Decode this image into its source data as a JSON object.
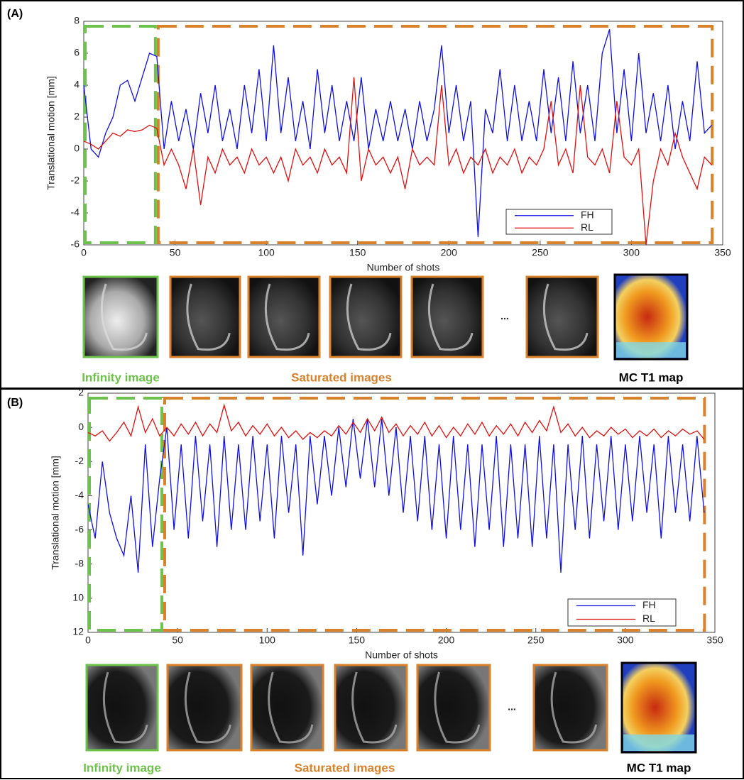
{
  "chart_data": [
    {
      "type": "line",
      "panel_label": "(A)",
      "ylabel": "Translational motion [mm]",
      "xlabel": "Number of shots",
      "xlim": [
        0,
        350
      ],
      "xticks": [
        0,
        50,
        100,
        150,
        200,
        250,
        300,
        350
      ],
      "ylim": [
        -6,
        8
      ],
      "yticks": [
        -6,
        -4,
        -2,
        0,
        2,
        4,
        6,
        8
      ],
      "legend": "lower right",
      "x": [
        0,
        4,
        8,
        12,
        16,
        20,
        24,
        28,
        32,
        36,
        40,
        44,
        48,
        52,
        56,
        60,
        64,
        68,
        72,
        76,
        80,
        84,
        88,
        92,
        96,
        100,
        104,
        108,
        112,
        116,
        120,
        124,
        128,
        132,
        136,
        140,
        144,
        148,
        152,
        156,
        160,
        164,
        168,
        172,
        176,
        180,
        184,
        188,
        192,
        196,
        200,
        204,
        208,
        212,
        216,
        220,
        224,
        228,
        232,
        236,
        240,
        244,
        248,
        252,
        256,
        260,
        264,
        268,
        272,
        276,
        280,
        284,
        288,
        292,
        296,
        300,
        304,
        308,
        312,
        316,
        320,
        324,
        328,
        332,
        336,
        340,
        344
      ],
      "series": [
        {
          "name": "FH",
          "color": "#1010e0",
          "values": [
            4,
            0,
            -0.5,
            1,
            2,
            4,
            4.3,
            3,
            4.5,
            6,
            5.8,
            0,
            3,
            0.5,
            2.5,
            0,
            3.5,
            1,
            4,
            0.5,
            2.5,
            0,
            4,
            1,
            5,
            0.5,
            6.5,
            1,
            4.5,
            0.5,
            3,
            0,
            5,
            1,
            4,
            0.5,
            3,
            0.5,
            4.5,
            0,
            2.5,
            0.5,
            3,
            0.5,
            2.5,
            0,
            3,
            0.5,
            2.5,
            6.5,
            1,
            4,
            0.5,
            3,
            -5.5,
            2.5,
            1,
            5,
            0.5,
            4,
            0.5,
            3,
            0.5,
            5,
            1,
            4.5,
            0.5,
            5.5,
            1,
            4,
            0.5,
            6,
            7.5,
            1,
            5,
            0.5,
            6,
            1,
            3.5,
            0.5,
            4,
            0,
            3,
            0.5,
            5.5,
            1,
            1.5
          ]
        },
        {
          "name": "RL",
          "color": "#e01010",
          "values": [
            0.5,
            0.3,
            0,
            0.5,
            1,
            0.8,
            1.2,
            1.1,
            1.2,
            1.5,
            1.3,
            -1,
            0,
            -1,
            -2.5,
            0,
            -3.5,
            -0.5,
            -1.5,
            0,
            -1,
            -0.5,
            -1.5,
            0,
            -1,
            -0.5,
            -1.5,
            -0.5,
            -2,
            0,
            -1,
            -0.5,
            -1.5,
            0,
            -1,
            -0.5,
            -1.5,
            4.5,
            -2,
            0,
            -1,
            -0.5,
            -1.5,
            -0.5,
            -2.5,
            0,
            -1,
            -0.5,
            -1,
            4,
            -1,
            0,
            -1.5,
            -0.5,
            -1,
            0,
            -1.5,
            -0.5,
            -1,
            0,
            -1.5,
            -0.5,
            -1,
            0,
            3,
            -1,
            0,
            -1.5,
            4,
            -0.5,
            -1,
            0,
            -1.5,
            3,
            -0.5,
            -1,
            0,
            -6,
            -2,
            0,
            -1,
            1,
            -0.5,
            -1.5,
            -2.5,
            -0.5,
            -1
          ]
        }
      ],
      "regions": [
        {
          "name": "Infinity image",
          "color": "#6cc24a",
          "xlim": [
            0,
            40
          ]
        },
        {
          "name": "Saturated images",
          "color": "#d9822b",
          "xlim": [
            40,
            345
          ]
        }
      ],
      "ellipsis": "...",
      "map_caption": "MC T1 map"
    },
    {
      "type": "line",
      "panel_label": "(B)",
      "ylabel": "Translational motion [mm]",
      "xlabel": "Number of shots",
      "xlim": [
        0,
        350
      ],
      "xticks": [
        0,
        50,
        100,
        150,
        200,
        250,
        300,
        350
      ],
      "ylim": [
        -12,
        2
      ],
      "yticks": [
        {
          "value": -12,
          "label": "12"
        },
        {
          "value": -10,
          "label": "10"
        },
        -8,
        -6,
        -4,
        -2,
        0,
        2
      ],
      "legend": "lower right",
      "x": [
        0,
        4,
        8,
        12,
        16,
        20,
        24,
        28,
        32,
        36,
        40,
        44,
        48,
        52,
        56,
        60,
        64,
        68,
        72,
        76,
        80,
        84,
        88,
        92,
        96,
        100,
        104,
        108,
        112,
        116,
        120,
        124,
        128,
        132,
        136,
        140,
        144,
        148,
        152,
        156,
        160,
        164,
        168,
        172,
        176,
        180,
        184,
        188,
        192,
        196,
        200,
        204,
        208,
        212,
        216,
        220,
        224,
        228,
        232,
        236,
        240,
        244,
        248,
        252,
        256,
        260,
        264,
        268,
        272,
        276,
        280,
        284,
        288,
        292,
        296,
        300,
        304,
        308,
        312,
        316,
        320,
        324,
        328,
        332,
        336,
        340,
        344
      ],
      "series": [
        {
          "name": "FH",
          "color": "#1010e0",
          "values": [
            -4.5,
            -6.5,
            -2,
            -5,
            -6.5,
            -7.5,
            -4,
            -8.5,
            -1,
            -7,
            -3,
            0,
            -6,
            -1,
            -6.5,
            -0.5,
            -5.5,
            -1,
            -7,
            -0.5,
            -6,
            -1,
            -6,
            -0.5,
            -5.5,
            -1,
            -6.5,
            -0.5,
            -5,
            -1,
            -7.5,
            -0.5,
            -4.5,
            -0.5,
            -4,
            0,
            -3.5,
            0.5,
            -3,
            0.5,
            -3.5,
            0.5,
            -4,
            0,
            -5,
            -0.5,
            -5.5,
            -0.5,
            -6,
            -1,
            -6.5,
            -0.5,
            -6,
            -1,
            -7,
            -1,
            -6,
            -0.5,
            -7,
            -1,
            -6.5,
            -1,
            -7,
            -0.5,
            -6.5,
            -1,
            -8.5,
            -1,
            -6,
            -0.5,
            -6.5,
            -1,
            -5.5,
            -0.5,
            -6,
            -1,
            -5.5,
            -0.5,
            -5,
            -1,
            -6.5,
            -0.5,
            -5,
            -1,
            -5.5,
            -0.5,
            -5
          ]
        },
        {
          "name": "RL",
          "color": "#e01010",
          "values": [
            -0.3,
            -0.5,
            -0.2,
            -0.8,
            -0.3,
            0.3,
            -0.5,
            1.2,
            -0.3,
            0.5,
            -0.5,
            0,
            -0.5,
            0.2,
            -0.4,
            0.3,
            -0.5,
            0.2,
            -0.3,
            1.3,
            -0.2,
            0.3,
            -0.5,
            0.1,
            -0.4,
            0.2,
            -0.5,
            0,
            -0.6,
            -0.2,
            -0.7,
            -0.3,
            -0.6,
            -0.2,
            -0.5,
            0.1,
            -0.4,
            0.3,
            -0.3,
            0.5,
            -0.2,
            0.6,
            -0.3,
            0.2,
            -0.5,
            0.1,
            -0.4,
            0.3,
            -0.5,
            0.1,
            -0.6,
            0,
            -0.5,
            0.2,
            -0.4,
            0.3,
            -0.5,
            0.1,
            -0.4,
            0.2,
            -0.5,
            0.3,
            -0.3,
            0.4,
            -0.2,
            1.2,
            -0.3,
            0.2,
            -0.5,
            0,
            -0.6,
            -0.2,
            -0.5,
            0,
            -0.4,
            -0.1,
            -0.6,
            -0.2,
            -0.5,
            -0.1,
            -0.6,
            -0.2,
            -0.5,
            -0.1,
            -0.4,
            -0.2,
            -0.7
          ]
        }
      ],
      "regions": [
        {
          "name": "Infinity image",
          "color": "#6cc24a",
          "xlim": [
            0,
            42
          ]
        },
        {
          "name": "Saturated images",
          "color": "#d9822b",
          "xlim": [
            42,
            345
          ]
        }
      ],
      "ellipsis": "...",
      "map_caption": "MC T1 map"
    }
  ]
}
